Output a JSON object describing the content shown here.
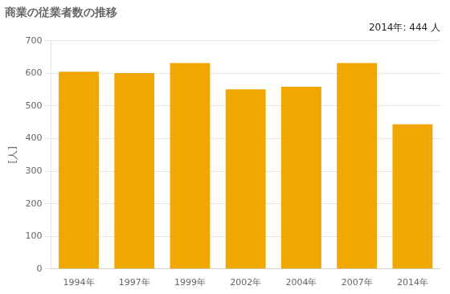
{
  "chart_data": {
    "type": "bar",
    "title": "商業の従業者数の推移",
    "ylabel": "[人]",
    "categories": [
      "1994年",
      "1997年",
      "1999年",
      "2002年",
      "2004年",
      "2007年",
      "2014年"
    ],
    "values": [
      605,
      601,
      632,
      551,
      559,
      632,
      444
    ],
    "color": "#F0A800",
    "ylim": [
      0,
      700
    ],
    "yticks": [
      0,
      100,
      200,
      300,
      400,
      500,
      600,
      700
    ],
    "grid": true,
    "annotation": "2014年: 444 人"
  }
}
